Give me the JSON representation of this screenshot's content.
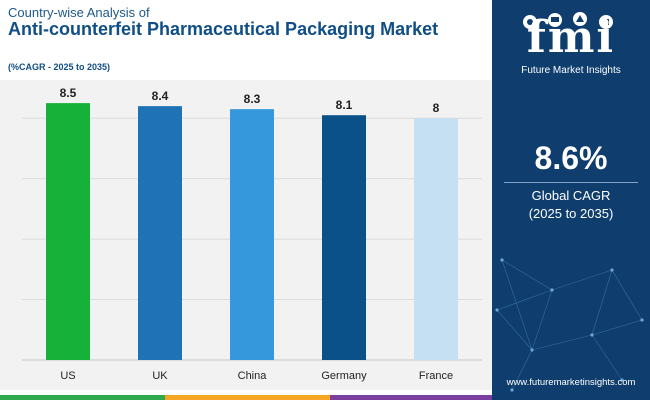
{
  "header": {
    "subtitle_top": "Country-wise Analysis of",
    "title": "Anti-counterfeit Pharmaceutical Packaging Market",
    "cagr_note": "(%CAGR - 2025 to 2035)"
  },
  "chart_data": {
    "type": "bar",
    "categories": [
      "US",
      "UK",
      "China",
      "Germany",
      "France"
    ],
    "values": [
      8.5,
      8.4,
      8.3,
      8.1,
      8
    ],
    "value_labels": [
      "8.5",
      "8.4",
      "8.3",
      "8.1",
      "8"
    ],
    "colors": [
      "#15b138",
      "#1f72b5",
      "#3598dc",
      "#0b5189",
      "#c5e0f3"
    ],
    "ylim": [
      0,
      9
    ],
    "grid": true,
    "legend": "none"
  },
  "sidebar": {
    "logo_text": "fmi",
    "logo_subtitle": "Future Market Insights",
    "stat_value": "8.6%",
    "stat_label": "Global CAGR",
    "stat_period": "(2025 to 2035)",
    "url": "www.futuremarketinsights.com",
    "bg_color": "#0e3d6e"
  },
  "stripe_colors": [
    "#2eaa4c",
    "#f5a623",
    "#7b3fa0",
    "#1f72b5"
  ]
}
